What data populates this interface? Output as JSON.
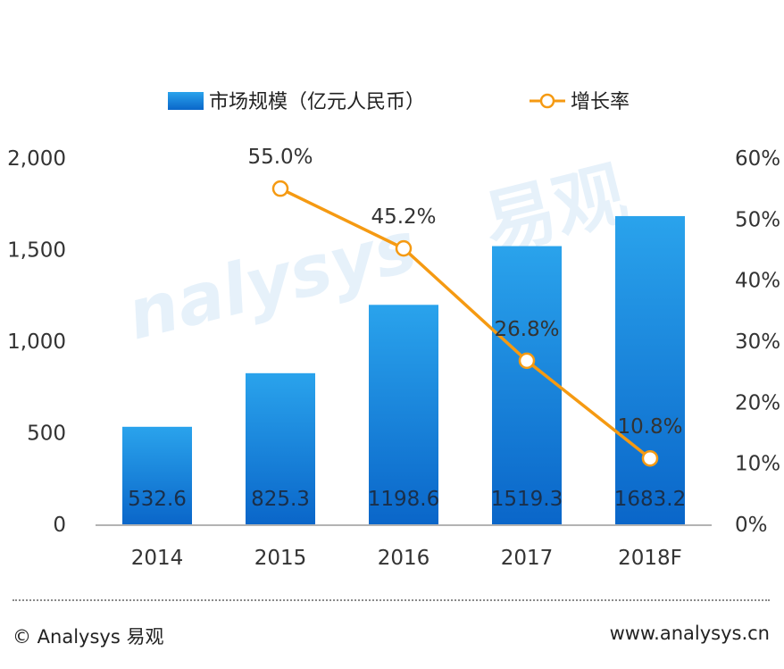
{
  "chart_data": {
    "type": "bar",
    "categories": [
      "2014",
      "2015",
      "2016",
      "2017",
      "2018F"
    ],
    "series": [
      {
        "name": "市场规模（亿元人民币）",
        "kind": "bar",
        "axis": "left",
        "values": [
          532.6,
          825.3,
          1198.6,
          1519.3,
          1683.2
        ],
        "labels": [
          "532.6",
          "825.3",
          "1198.6",
          "1519.3",
          "1683.2"
        ]
      },
      {
        "name": "增长率",
        "kind": "line",
        "axis": "right",
        "values": [
          null,
          55.0,
          45.2,
          26.8,
          10.8
        ],
        "labels": [
          "",
          "55.0%",
          "45.2%",
          "26.8%",
          "10.8%"
        ]
      }
    ],
    "y_left": {
      "range": [
        0,
        2000
      ],
      "ticks": [
        "0",
        "500",
        "1,000",
        "1,500",
        "2,000"
      ]
    },
    "y_right": {
      "range": [
        0,
        60
      ],
      "ticks": [
        "0%",
        "10%",
        "20%",
        "30%",
        "40%",
        "50%",
        "60%"
      ]
    },
    "legend_position": "top",
    "grid": false,
    "colors": {
      "bar_top": "#2aa3ec",
      "bar_bottom": "#0a66c9",
      "line": "#f59a12",
      "marker_fill": "#ffffff"
    }
  },
  "footer": {
    "copyright": "© Analysys 易观",
    "website": "www.analysys.cn"
  },
  "watermark": {
    "brand": "nalysys",
    "brand_cn": "易观"
  }
}
